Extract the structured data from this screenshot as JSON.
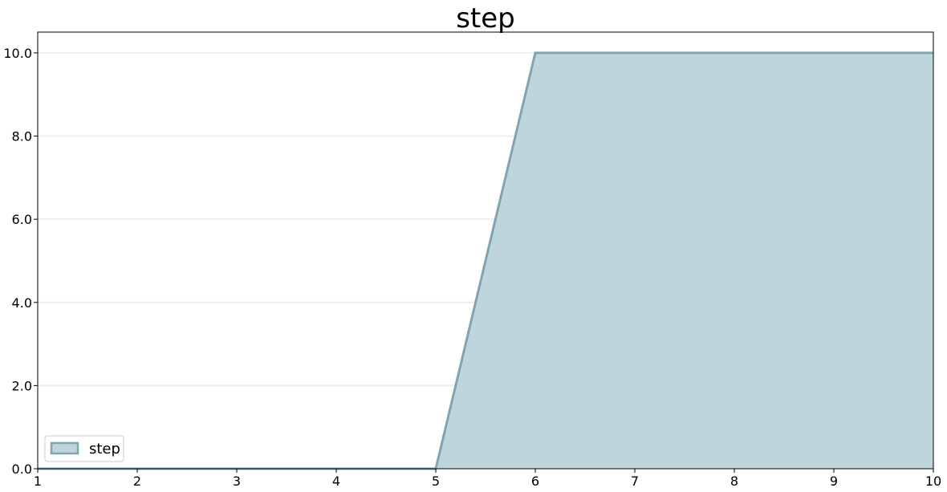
{
  "chart_data": {
    "type": "area",
    "title": "step",
    "xlabel": "",
    "ylabel": "",
    "x": [
      1,
      2,
      3,
      4,
      5,
      6,
      7,
      8,
      9,
      10
    ],
    "series": [
      {
        "name": "step",
        "values": [
          0,
          0,
          0,
          0,
          0,
          10,
          10,
          10,
          10,
          10
        ],
        "fill_color": "#bfd5dc",
        "line_color": "#7fa5b3"
      }
    ],
    "xlim": [
      1,
      10
    ],
    "ylim": [
      0,
      10.5
    ],
    "xticks": [
      1,
      2,
      3,
      4,
      5,
      6,
      7,
      8,
      9,
      10
    ],
    "xtick_labels": [
      "1",
      "2",
      "3",
      "4",
      "5",
      "6",
      "7",
      "8",
      "9",
      "10"
    ],
    "yticks": [
      0,
      2,
      4,
      6,
      8,
      10
    ],
    "ytick_labels": [
      "0.0",
      "2.0",
      "4.0",
      "6.0",
      "8.0",
      "10.0"
    ],
    "grid": "horizontal",
    "grid_color": "#eeeeee",
    "legend": {
      "position": "lower-left",
      "entries": [
        "step"
      ]
    }
  }
}
